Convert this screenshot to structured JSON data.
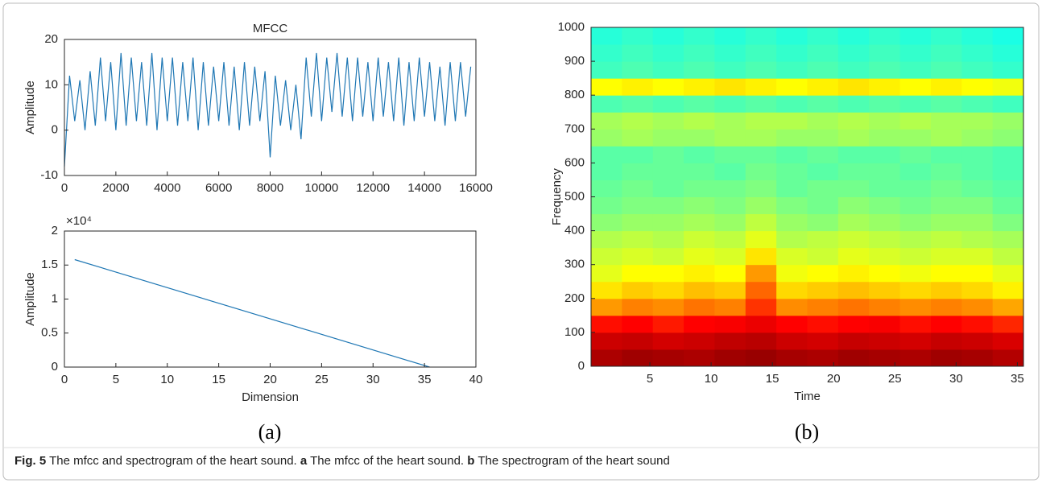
{
  "chart_data": [
    {
      "type": "line",
      "title": "MFCC",
      "ylabel": "Amplitude",
      "color": "#1f77b4",
      "x": [
        0,
        200,
        400,
        600,
        800,
        1000,
        1200,
        1400,
        1600,
        1800,
        2000,
        2200,
        2400,
        2600,
        2800,
        3000,
        3200,
        3400,
        3600,
        3800,
        4000,
        4200,
        4400,
        4600,
        4800,
        5000,
        5200,
        5400,
        5600,
        5800,
        6000,
        6200,
        6400,
        6600,
        6800,
        7000,
        7200,
        7400,
        7600,
        7800,
        8000,
        8200,
        8400,
        8600,
        8800,
        9000,
        9200,
        9400,
        9600,
        9800,
        10000,
        10200,
        10400,
        10600,
        10800,
        11000,
        11200,
        11400,
        11600,
        11800,
        12000,
        12200,
        12400,
        12600,
        12800,
        13000,
        13200,
        13400,
        13600,
        13800,
        14000,
        14200,
        14400,
        14600,
        14800,
        15000,
        15200,
        15400,
        15600,
        15800
      ],
      "values": [
        -8,
        12,
        2,
        11,
        0,
        13,
        1,
        16,
        2,
        15,
        0,
        17,
        1,
        16,
        2,
        15,
        1,
        17,
        0,
        16,
        2,
        16,
        1,
        15,
        2,
        16,
        0,
        15,
        1,
        14,
        2,
        15,
        1,
        14,
        0,
        15,
        1,
        14,
        2,
        13,
        -6,
        12,
        1,
        11,
        0,
        10,
        -2,
        16,
        3,
        17,
        2,
        16,
        4,
        17,
        3,
        16,
        2,
        16,
        3,
        15,
        2,
        16,
        3,
        15,
        2,
        16,
        1,
        15,
        2,
        16,
        3,
        15,
        2,
        14,
        1,
        15,
        2,
        15,
        3,
        14
      ],
      "xlim": [
        0,
        16000
      ],
      "xticks": [
        0,
        2000,
        4000,
        6000,
        8000,
        10000,
        12000,
        14000,
        16000
      ],
      "ylim": [
        -10,
        20
      ],
      "yticks": [
        -10,
        0,
        10,
        20
      ]
    },
    {
      "type": "line",
      "xlabel": "Dimension",
      "ylabel": "Amplitude",
      "y_multiplier": "×10⁴",
      "color": "#1f77b4",
      "x": [
        1,
        35.5
      ],
      "values": [
        15800,
        0
      ],
      "xlim": [
        0,
        40
      ],
      "xticks": [
        0,
        5,
        10,
        15,
        20,
        25,
        30,
        35,
        40
      ],
      "ylim": [
        0,
        20000
      ],
      "yticks": [
        0,
        {
          "value": 5000,
          "label": "0.5"
        },
        {
          "value": 10000,
          "label": "1"
        },
        {
          "value": 15000,
          "label": "1.5"
        },
        {
          "value": 20000,
          "label": "2"
        }
      ]
    },
    {
      "type": "heatmap",
      "xlabel": "Time",
      "ylabel": "Frequency",
      "colormap": [
        "#00008f",
        "#0000ff",
        "#00ffff",
        "#ffff00",
        "#ff0000",
        "#800000"
      ],
      "xlim": [
        0.2,
        35.5
      ],
      "xticks": [
        5,
        10,
        15,
        20,
        25,
        30,
        35
      ],
      "ylim": [
        0,
        1000
      ],
      "yticks": [
        0,
        100,
        200,
        300,
        400,
        500,
        600,
        700,
        800,
        900,
        1000
      ],
      "z": [
        [
          0.93,
          0.95,
          0.94,
          0.93,
          0.95,
          0.96,
          0.94,
          0.93,
          0.95,
          0.94,
          0.93,
          0.95,
          0.94,
          0.92
        ],
        [
          0.88,
          0.89,
          0.87,
          0.88,
          0.9,
          0.91,
          0.88,
          0.87,
          0.89,
          0.88,
          0.87,
          0.89,
          0.88,
          0.86
        ],
        [
          0.79,
          0.8,
          0.78,
          0.8,
          0.81,
          0.83,
          0.8,
          0.79,
          0.8,
          0.81,
          0.79,
          0.8,
          0.79,
          0.77
        ],
        [
          0.68,
          0.7,
          0.69,
          0.71,
          0.7,
          0.76,
          0.69,
          0.7,
          0.71,
          0.7,
          0.69,
          0.7,
          0.69,
          0.67
        ],
        [
          0.62,
          0.64,
          0.63,
          0.65,
          0.64,
          0.72,
          0.63,
          0.64,
          0.65,
          0.64,
          0.63,
          0.64,
          0.63,
          0.61
        ],
        [
          0.58,
          0.6,
          0.6,
          0.61,
          0.6,
          0.68,
          0.59,
          0.6,
          0.61,
          0.6,
          0.59,
          0.6,
          0.6,
          0.58
        ],
        [
          0.56,
          0.57,
          0.56,
          0.58,
          0.57,
          0.62,
          0.57,
          0.56,
          0.58,
          0.57,
          0.56,
          0.57,
          0.57,
          0.55
        ],
        [
          0.54,
          0.55,
          0.54,
          0.56,
          0.55,
          0.58,
          0.54,
          0.55,
          0.56,
          0.55,
          0.54,
          0.55,
          0.54,
          0.53
        ],
        [
          0.51,
          0.52,
          0.52,
          0.53,
          0.52,
          0.55,
          0.52,
          0.51,
          0.53,
          0.52,
          0.51,
          0.52,
          0.52,
          0.5
        ],
        [
          0.49,
          0.5,
          0.5,
          0.51,
          0.5,
          0.52,
          0.5,
          0.49,
          0.51,
          0.5,
          0.49,
          0.5,
          0.5,
          0.48
        ],
        [
          0.48,
          0.49,
          0.48,
          0.49,
          0.49,
          0.5,
          0.48,
          0.49,
          0.49,
          0.48,
          0.48,
          0.49,
          0.48,
          0.47
        ],
        [
          0.47,
          0.48,
          0.48,
          0.48,
          0.47,
          0.49,
          0.48,
          0.47,
          0.48,
          0.48,
          0.47,
          0.48,
          0.47,
          0.46
        ],
        [
          0.47,
          0.47,
          0.48,
          0.47,
          0.48,
          0.48,
          0.47,
          0.48,
          0.47,
          0.47,
          0.48,
          0.47,
          0.47,
          0.46
        ],
        [
          0.52,
          0.53,
          0.52,
          0.52,
          0.53,
          0.53,
          0.52,
          0.52,
          0.53,
          0.52,
          0.52,
          0.53,
          0.52,
          0.51
        ],
        [
          0.53,
          0.54,
          0.53,
          0.54,
          0.53,
          0.54,
          0.54,
          0.53,
          0.54,
          0.53,
          0.54,
          0.53,
          0.53,
          0.52
        ],
        [
          0.46,
          0.47,
          0.46,
          0.47,
          0.46,
          0.47,
          0.46,
          0.47,
          0.46,
          0.47,
          0.46,
          0.47,
          0.46,
          0.45
        ],
        [
          0.6,
          0.61,
          0.6,
          0.61,
          0.62,
          0.61,
          0.6,
          0.61,
          0.62,
          0.61,
          0.6,
          0.61,
          0.6,
          0.59
        ],
        [
          0.45,
          0.46,
          0.45,
          0.46,
          0.45,
          0.46,
          0.45,
          0.46,
          0.45,
          0.46,
          0.45,
          0.46,
          0.45,
          0.44
        ],
        [
          0.44,
          0.45,
          0.44,
          0.45,
          0.44,
          0.45,
          0.44,
          0.45,
          0.44,
          0.45,
          0.44,
          0.45,
          0.44,
          0.43
        ],
        [
          0.43,
          0.44,
          0.43,
          0.44,
          0.43,
          0.44,
          0.43,
          0.44,
          0.43,
          0.44,
          0.43,
          0.44,
          0.43,
          0.42
        ]
      ]
    }
  ],
  "panels": [
    {
      "label": "(a)"
    },
    {
      "label": "(b)"
    }
  ],
  "caption": {
    "label": "Fig. 5",
    "text1": " The mfcc and spectrogram of the heart sound. ",
    "a": "a",
    "text2": " The mfcc of the heart sound. ",
    "b": "b",
    "text3": " The spectrogram of the heart sound"
  }
}
